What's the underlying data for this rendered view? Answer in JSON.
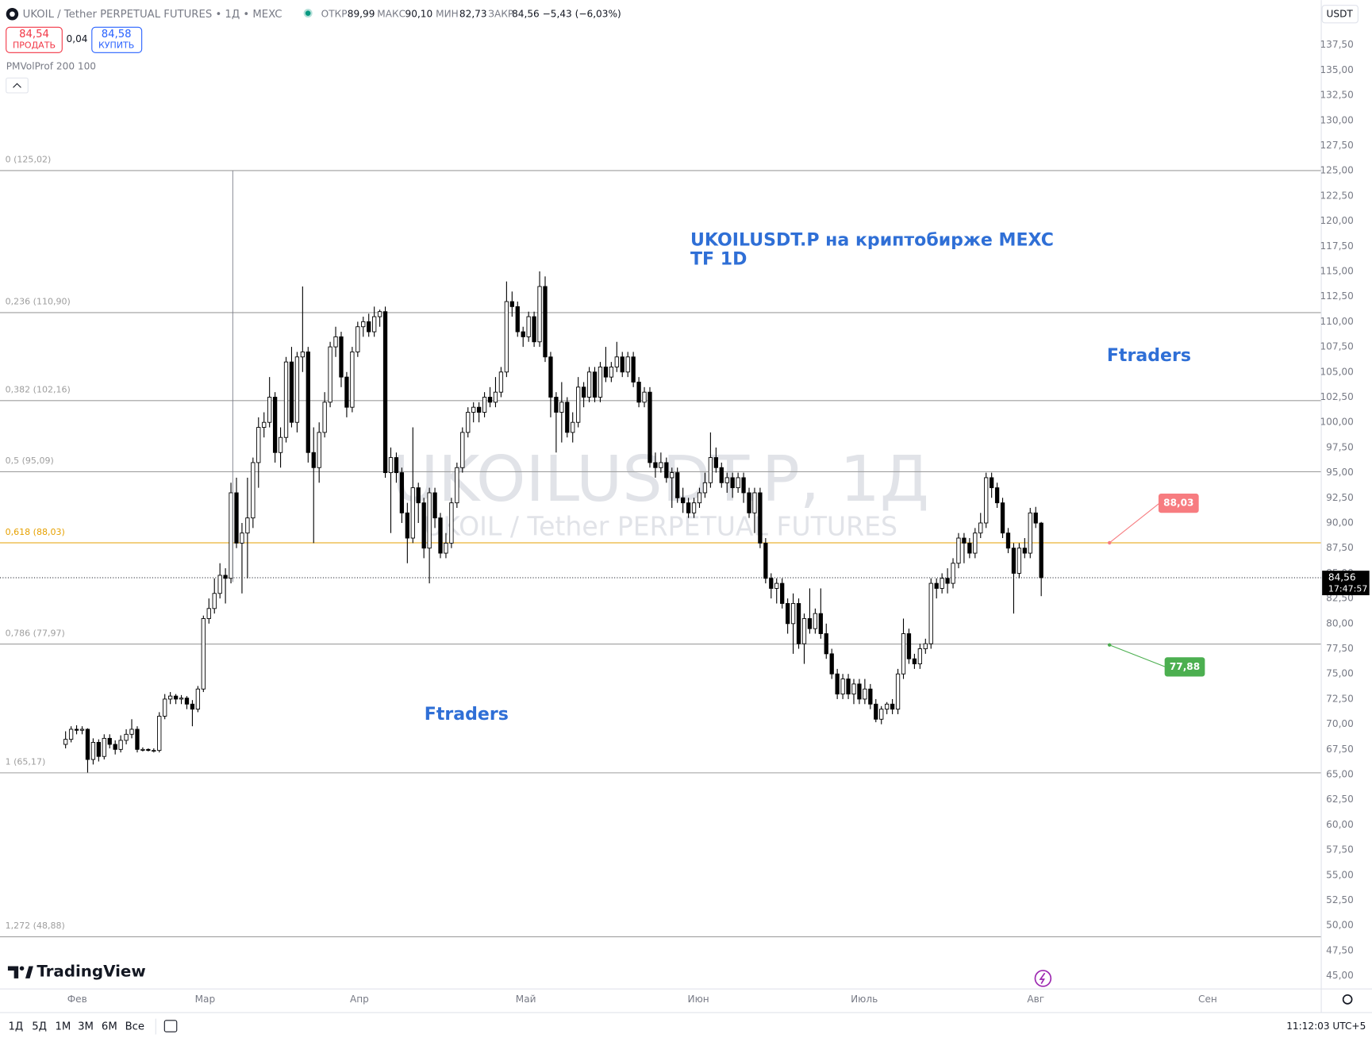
{
  "header": {
    "symbol": "UKOIL / Tether PERPETUAL FUTURES • 1Д • MEXC",
    "open_label": "ОТКР",
    "open": "89,99",
    "high_label": "МАКС",
    "high": "90,10",
    "low_label": "МИН",
    "low": "82,73",
    "close_label": "ЗАКР",
    "close": "84,56",
    "change": "−5,43 (−6,03%)",
    "sell_price": "84,54",
    "sell_label": "ПРОДАТЬ",
    "spread": "0,04",
    "buy_price": "84,58",
    "buy_label": "КУПИТЬ",
    "indicator": "PMVolProf 200 100",
    "currency": "USDT"
  },
  "toolbar": {
    "ranges": [
      "1Д",
      "5Д",
      "1М",
      "3М",
      "6М",
      "Все"
    ],
    "clock": "11:12:03 UTC+5",
    "brand": "TradingView"
  },
  "chart_data": {
    "type": "candlestick",
    "watermark": "UKOILUSDT.P, 1Д",
    "watermark_subtitle": "UKOIL / Tether PERPETUAL FUTURES",
    "annotations": [
      "UKOILUSDT.P на криптобирже MEXC",
      "TF 1D",
      "Ftraders",
      "Ftraders"
    ],
    "up_color": "#ffffff",
    "down_color": "#000000",
    "fib_levels": [
      {
        "value": 125.02,
        "label": "0 (125,02)",
        "color": "#9e9e9e"
      },
      {
        "value": 110.9,
        "label": "0,236 (110,90)",
        "color": "#9e9e9e"
      },
      {
        "value": 102.16,
        "label": "0,382 (102,16)",
        "color": "#9e9e9e"
      },
      {
        "value": 95.09,
        "label": "0,5 (95,09)",
        "color": "#9e9e9e"
      },
      {
        "value": 88.03,
        "label": "0,618 (88,03)",
        "color": "#e6a100"
      },
      {
        "value": 77.97,
        "label": "0,786 (77,97)",
        "color": "#9e9e9e"
      },
      {
        "value": 65.17,
        "label": "1 (65,17)",
        "color": "#9e9e9e"
      },
      {
        "value": 48.88,
        "label": "1,272 (48,88)",
        "color": "#9e9e9e"
      }
    ],
    "price_notes": [
      {
        "value": 88.03,
        "label": "88,03",
        "color": "#f77c80"
      },
      {
        "value": 77.88,
        "label": "77,88",
        "color": "#4caf50"
      }
    ],
    "last_price": {
      "value": 84.56,
      "label": "84,56"
    },
    "countdown": "17:47:57",
    "xlim": [
      -11.9,
      227.8
    ],
    "xticks": [
      {
        "value": 2.1,
        "label": "Фев"
      },
      {
        "value": 25.3,
        "label": "Мар"
      },
      {
        "value": 53.3,
        "label": "Апр"
      },
      {
        "value": 83.5,
        "label": "Май"
      },
      {
        "value": 114.8,
        "label": "Июн"
      },
      {
        "value": 144.9,
        "label": "Июль"
      },
      {
        "value": 176.0,
        "label": "Авг"
      },
      {
        "value": 207.2,
        "label": "Сен"
      }
    ],
    "ylim": [
      43.7,
      141.96
    ],
    "yticks": [
      {
        "value": 45,
        "label": "45,00"
      },
      {
        "value": 47.5,
        "label": "47,50"
      },
      {
        "value": 50,
        "label": "50,00"
      },
      {
        "value": 52.5,
        "label": "52,50"
      },
      {
        "value": 55,
        "label": "55,00"
      },
      {
        "value": 57.5,
        "label": "57,50"
      },
      {
        "value": 60,
        "label": "60,00"
      },
      {
        "value": 62.5,
        "label": "62,50"
      },
      {
        "value": 65,
        "label": "65,00"
      },
      {
        "value": 67.5,
        "label": "67,50"
      },
      {
        "value": 70,
        "label": "70,00"
      },
      {
        "value": 72.5,
        "label": "72,50"
      },
      {
        "value": 75,
        "label": "75,00"
      },
      {
        "value": 77.5,
        "label": "77,50"
      },
      {
        "value": 80,
        "label": "80,00"
      },
      {
        "value": 82.5,
        "label": "82,50"
      },
      {
        "value": 85,
        "label": "85,00"
      },
      {
        "value": 87.5,
        "label": "87,50"
      },
      {
        "value": 90,
        "label": "90,00"
      },
      {
        "value": 92.5,
        "label": "92,50"
      },
      {
        "value": 95,
        "label": "95,00"
      },
      {
        "value": 97.5,
        "label": "97,50"
      },
      {
        "value": 100,
        "label": "100,00"
      },
      {
        "value": 102.5,
        "label": "102,50"
      },
      {
        "value": 105,
        "label": "105,00"
      },
      {
        "value": 107.5,
        "label": "107,50"
      },
      {
        "value": 110,
        "label": "110,00"
      },
      {
        "value": 112.5,
        "label": "112,50"
      },
      {
        "value": 115,
        "label": "115,00"
      },
      {
        "value": 117.5,
        "label": "117,50"
      },
      {
        "value": 120,
        "label": "120,00"
      },
      {
        "value": 122.5,
        "label": "122,50"
      },
      {
        "value": 125,
        "label": "125,00"
      },
      {
        "value": 127.5,
        "label": "127,50"
      },
      {
        "value": 130,
        "label": "130,00"
      },
      {
        "value": 132.5,
        "label": "132,50"
      },
      {
        "value": 135,
        "label": "135,00"
      },
      {
        "value": 137.5,
        "label": "137,50"
      }
    ],
    "ohlc": [
      [
        68,
        69.3,
        67.6,
        68.5
      ],
      [
        68.5,
        69.8,
        68.2,
        69.5
      ],
      [
        69.5,
        69.9,
        69,
        69.4
      ],
      [
        69.4,
        69.8,
        69,
        69.5
      ],
      [
        69.5,
        69.6,
        65.2,
        66.5
      ],
      [
        66.5,
        68.6,
        66,
        68.2
      ],
      [
        68.2,
        68.5,
        66.3,
        66.8
      ],
      [
        66.8,
        69,
        66.5,
        68.6
      ],
      [
        68.6,
        69,
        67.6,
        68
      ],
      [
        68,
        68.4,
        67,
        67.5
      ],
      [
        67.5,
        68.9,
        67.2,
        68.4
      ],
      [
        68.4,
        69.5,
        68,
        69
      ],
      [
        69,
        70.5,
        68.6,
        69.5
      ],
      [
        69.5,
        69.8,
        67.2,
        67.5
      ],
      [
        67.5,
        67.7,
        67.3,
        67.5
      ],
      [
        67.5,
        67.6,
        67.3,
        67.4
      ],
      [
        67.4,
        67.6,
        67.2,
        67.4
      ],
      [
        67.4,
        71.2,
        67.2,
        70.8
      ],
      [
        70.8,
        73,
        70.5,
        72.5
      ],
      [
        72.5,
        73.2,
        72,
        72.8
      ],
      [
        72.8,
        73,
        72,
        72.5
      ],
      [
        72.5,
        72.9,
        72,
        72.6
      ],
      [
        72.6,
        72.8,
        71.5,
        72
      ],
      [
        72,
        72.4,
        69.8,
        71.5
      ],
      [
        71.5,
        73.8,
        71.2,
        73.5
      ],
      [
        73.5,
        80.8,
        73.2,
        80.5
      ],
      [
        80.5,
        82.5,
        80,
        81.5
      ],
      [
        81.5,
        84.5,
        81,
        83
      ],
      [
        83,
        86,
        82.5,
        84.8
      ],
      [
        84.8,
        85.5,
        82,
        84.5
      ],
      [
        84.5,
        94,
        84,
        93
      ],
      [
        93,
        94.5,
        87.5,
        88
      ],
      [
        88,
        90,
        83,
        89
      ],
      [
        89,
        94.5,
        84.5,
        90.5
      ],
      [
        90.5,
        96.5,
        89.5,
        96
      ],
      [
        96,
        100.5,
        93.5,
        99.5
      ],
      [
        99.5,
        101,
        98.5,
        100
      ],
      [
        100,
        104.5,
        99.5,
        102.5
      ],
      [
        102.5,
        103,
        96,
        97
      ],
      [
        97,
        99.5,
        95.5,
        98.5
      ],
      [
        98.5,
        106.5,
        98,
        106
      ],
      [
        106,
        107.5,
        99.5,
        100
      ],
      [
        100,
        107,
        99,
        106.5
      ],
      [
        106.5,
        113.5,
        105,
        107
      ],
      [
        107,
        107.5,
        96,
        97
      ],
      [
        97,
        99.5,
        88,
        95.5
      ],
      [
        95.5,
        100,
        94,
        99
      ],
      [
        99,
        103,
        98.5,
        102
      ],
      [
        102,
        108,
        101.5,
        107.5
      ],
      [
        107.5,
        109.5,
        106.5,
        108.5
      ],
      [
        108.5,
        109,
        103.5,
        104.5
      ],
      [
        104.5,
        105,
        100.5,
        101.5
      ],
      [
        101.5,
        107.5,
        101,
        107
      ],
      [
        107,
        110,
        106.5,
        109.5
      ],
      [
        109.5,
        110.5,
        108.5,
        110
      ],
      [
        110,
        110.8,
        108.5,
        109
      ],
      [
        109,
        111.5,
        108.5,
        110.5
      ],
      [
        110.5,
        111.2,
        109.5,
        111
      ],
      [
        111,
        111.5,
        94.5,
        95
      ],
      [
        95,
        97.5,
        89,
        96.5
      ],
      [
        96.5,
        97,
        94,
        95
      ],
      [
        95,
        95.5,
        90,
        91
      ],
      [
        91,
        92,
        86,
        88.5
      ],
      [
        88.5,
        99.5,
        88,
        93.5
      ],
      [
        93.5,
        94,
        90,
        92
      ],
      [
        92,
        92.5,
        86.5,
        87.5
      ],
      [
        87.5,
        93.5,
        84,
        93
      ],
      [
        93,
        93.5,
        89.5,
        90.5
      ],
      [
        90.5,
        91,
        86.5,
        87
      ],
      [
        87,
        89,
        86.5,
        88
      ],
      [
        88,
        92.5,
        87.5,
        92
      ],
      [
        92,
        96,
        91.5,
        95.5
      ],
      [
        95.5,
        99.5,
        95,
        99
      ],
      [
        99,
        101.5,
        98.5,
        101
      ],
      [
        101,
        102,
        100,
        101.5
      ],
      [
        101.5,
        102,
        100,
        101
      ],
      [
        101,
        103,
        100.5,
        102.5
      ],
      [
        102.5,
        103.5,
        101.5,
        102
      ],
      [
        102,
        104.5,
        101.5,
        103
      ],
      [
        103,
        105.5,
        102.5,
        105
      ],
      [
        105,
        114,
        104.5,
        112
      ],
      [
        112,
        113,
        110.5,
        111.5
      ],
      [
        111.5,
        112,
        108.5,
        109
      ],
      [
        109,
        109.5,
        107.5,
        108.5
      ],
      [
        108.5,
        111,
        108,
        110.5
      ],
      [
        110.5,
        111,
        107.5,
        108
      ],
      [
        108,
        115,
        107.5,
        113.5
      ],
      [
        113.5,
        114.5,
        106,
        106.5
      ],
      [
        106.5,
        107,
        100.5,
        102.5
      ],
      [
        102.5,
        103,
        97,
        101
      ],
      [
        101,
        104,
        98,
        102
      ],
      [
        102,
        102.5,
        98.5,
        99
      ],
      [
        99,
        101,
        98,
        100
      ],
      [
        100,
        104.5,
        99.5,
        103.5
      ],
      [
        103.5,
        104,
        101.5,
        102.5
      ],
      [
        102.5,
        105.5,
        102,
        105
      ],
      [
        105,
        105.5,
        102,
        102.5
      ],
      [
        102.5,
        106,
        102,
        105.5
      ],
      [
        105.5,
        107.5,
        104,
        104.5
      ],
      [
        104.5,
        106,
        104,
        105.5
      ],
      [
        105.5,
        108,
        105,
        106.5
      ],
      [
        106.5,
        107,
        104.5,
        105
      ],
      [
        105,
        107,
        104.5,
        106.5
      ],
      [
        106.5,
        107,
        103.5,
        104
      ],
      [
        104,
        104.5,
        101.5,
        102
      ],
      [
        102,
        103.5,
        101.5,
        103
      ],
      [
        103,
        103.5,
        95.5,
        96
      ],
      [
        96,
        97,
        94.5,
        95.5
      ],
      [
        95.5,
        97,
        95,
        96
      ],
      [
        96,
        96.5,
        94,
        94.5
      ],
      [
        94.5,
        95.5,
        91.5,
        95
      ],
      [
        95,
        95.5,
        92,
        92.5
      ],
      [
        92.5,
        93.5,
        91,
        92
      ],
      [
        92,
        92.5,
        90.5,
        91
      ],
      [
        91,
        92.5,
        90.5,
        92
      ],
      [
        92,
        93.5,
        91.5,
        93
      ],
      [
        93,
        95,
        92.5,
        94
      ],
      [
        94,
        99,
        93.5,
        96.5
      ],
      [
        96.5,
        97.5,
        95,
        95.5
      ],
      [
        95.5,
        96,
        93.5,
        94
      ],
      [
        94,
        95,
        93,
        94.5
      ],
      [
        94.5,
        95,
        92.5,
        93.5
      ],
      [
        93.5,
        95,
        93,
        94.5
      ],
      [
        94.5,
        95,
        92,
        93
      ],
      [
        93,
        93.5,
        90.5,
        91
      ],
      [
        91,
        93.5,
        89,
        93
      ],
      [
        93,
        93.5,
        87.5,
        88
      ],
      [
        88,
        88.5,
        84,
        84.5
      ],
      [
        84.5,
        85,
        82.5,
        83.5
      ],
      [
        83.5,
        84.5,
        82,
        84
      ],
      [
        84,
        84.5,
        81.5,
        82
      ],
      [
        82,
        82.5,
        79,
        80
      ],
      [
        80,
        83,
        77,
        82
      ],
      [
        82,
        82.5,
        77.5,
        78
      ],
      [
        78,
        81,
        76,
        80.5
      ],
      [
        80.5,
        83.5,
        79,
        79.5
      ],
      [
        79.5,
        81.5,
        79,
        81
      ],
      [
        81,
        83.5,
        78.5,
        79
      ],
      [
        79,
        80,
        76.5,
        77
      ],
      [
        77,
        77.5,
        74.5,
        75
      ],
      [
        75,
        75.5,
        72.5,
        73
      ],
      [
        73,
        75,
        72.5,
        74.5
      ],
      [
        74.5,
        75,
        72.5,
        73
      ],
      [
        73,
        74.5,
        72,
        74
      ],
      [
        74,
        74.5,
        72,
        72.5
      ],
      [
        72.5,
        74.5,
        72,
        73.5
      ],
      [
        73.5,
        74,
        71.5,
        72
      ],
      [
        72,
        72.5,
        70.2,
        70.5
      ],
      [
        70.5,
        71.8,
        70,
        71.5
      ],
      [
        71.5,
        72.2,
        71,
        72
      ],
      [
        72,
        72.5,
        71,
        71.5
      ],
      [
        71.5,
        75.5,
        71,
        75
      ],
      [
        75,
        80.5,
        74.5,
        79
      ],
      [
        79,
        79.5,
        76,
        76.5
      ],
      [
        76.5,
        77,
        75.5,
        76
      ],
      [
        76,
        78,
        75.5,
        77.5
      ],
      [
        77.5,
        78.5,
        77,
        78
      ],
      [
        78,
        84.5,
        77.5,
        84
      ],
      [
        84,
        84.5,
        82.5,
        83.5
      ],
      [
        83.5,
        85,
        83,
        84.5
      ],
      [
        84.5,
        85.5,
        83,
        84
      ],
      [
        84,
        86.5,
        83.5,
        86
      ],
      [
        86,
        89,
        85.5,
        88.5
      ],
      [
        88.5,
        89,
        86,
        88
      ],
      [
        88,
        88.5,
        86.5,
        87
      ],
      [
        87,
        89.5,
        86.5,
        89
      ],
      [
        89,
        91,
        88.5,
        90
      ],
      [
        90,
        95,
        89.5,
        94.5
      ],
      [
        94.5,
        95,
        92.5,
        93.5
      ],
      [
        93.5,
        94,
        91.5,
        92
      ],
      [
        92,
        92.5,
        88.5,
        89
      ],
      [
        89,
        89.5,
        87,
        87.5
      ],
      [
        87.5,
        88,
        81,
        85
      ],
      [
        85,
        88,
        84.5,
        87.5
      ],
      [
        87.5,
        88.5,
        86.5,
        87
      ],
      [
        87,
        91.5,
        86.5,
        91
      ],
      [
        91,
        91.6,
        89.5,
        89.99
      ],
      [
        89.99,
        90.1,
        82.73,
        84.56
      ]
    ]
  }
}
